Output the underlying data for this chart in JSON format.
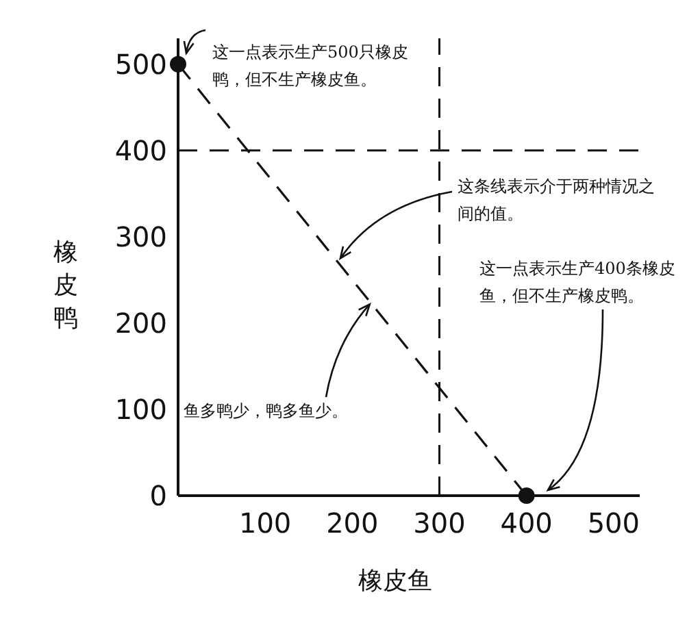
{
  "chart_data": {
    "type": "line",
    "xlabel": "橡皮鱼",
    "ylabel": "橡皮鸭",
    "series": [
      {
        "color": "#111111",
        "x": [
          0,
          400
        ],
        "values": [
          500,
          0
        ]
      }
    ],
    "marker": "circle",
    "line_style": "dashed",
    "xlim": [
      0,
      530
    ],
    "ylim": [
      0,
      530
    ],
    "xticks": [
      100,
      200,
      300,
      400,
      500
    ],
    "yticks": [
      0,
      100,
      200,
      300,
      400,
      500
    ],
    "ref_lines": [
      {
        "axis": "x",
        "value": 300,
        "line_style": "dashed",
        "color": "#111111"
      },
      {
        "axis": "y",
        "value": 400,
        "line_style": "dashed",
        "color": "#111111"
      }
    ],
    "annotations": [
      {
        "text": "这一点表示生产500只橡皮鸭，但不生产橡皮鱼。",
        "x": 0,
        "y": 500
      },
      {
        "text": "这条线表示介于两种情况之间的值。",
        "x": 180,
        "y": 275
      },
      "这一点表示生产400条橡皮鱼，但不生产橡皮鸭。",
      {
        "text": "鱼多鸭少，鸭多鱼少。",
        "x": 220,
        "y": 225
      }
    ]
  }
}
